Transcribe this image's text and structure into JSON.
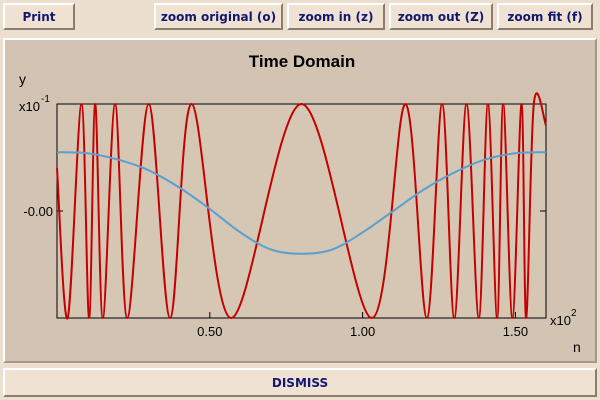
{
  "toolbar": {
    "print_label": "Print",
    "zoom_original_label": "zoom original (o)",
    "zoom_in_label": "zoom in (z)",
    "zoom_out_label": "zoom out (Z)",
    "zoom_fit_label": "zoom fit (f)"
  },
  "footer": {
    "dismiss_label": "DISMISS"
  },
  "plot": {
    "title": "Time Domain",
    "ylabel": "y",
    "xlabel": "n",
    "y_exponent_base": "x10",
    "y_exponent_power": "-1",
    "x_exponent_base": "x10",
    "x_exponent_power": "2",
    "x_ticks": [
      "0.50",
      "1.00",
      "1.50"
    ],
    "y_ticks": [
      "-0.00"
    ]
  },
  "colors": {
    "signal_red": "#c40000",
    "signal_blue": "#5a9fcf",
    "label_navy": "#121870",
    "panel_bg": "#d3c3b3",
    "plot_bg": "#d6c7b5"
  },
  "chart_data": {
    "type": "line",
    "title": "Time Domain",
    "xlabel": "n",
    "ylabel": "y",
    "x_scale_exponent": 2,
    "y_scale_exponent": -1,
    "xlim": [
      0.0,
      1.6
    ],
    "ylim": [
      -1.0,
      1.0
    ],
    "x_ticks": [
      0.5,
      1.0,
      1.5
    ],
    "y_ticks": [
      0.0
    ],
    "series": [
      {
        "color": "#c40000",
        "description_free": true,
        "x": [
          0.0,
          0.035,
          0.08,
          0.105,
          0.125,
          0.15,
          0.19,
          0.23,
          0.3,
          0.37,
          0.44,
          0.57,
          0.8,
          1.03,
          1.14,
          1.21,
          1.26,
          1.3,
          1.34,
          1.38,
          1.41,
          1.44,
          1.46,
          1.49,
          1.52,
          1.535,
          1.56,
          1.6
        ],
        "y": [
          0.4,
          -1.0,
          1.0,
          -1.0,
          1.0,
          -1.0,
          1.0,
          -1.0,
          1.0,
          -1.0,
          1.0,
          -1.0,
          1.0,
          -1.0,
          1.0,
          -1.0,
          1.0,
          -1.0,
          1.0,
          -1.0,
          1.0,
          -1.0,
          1.0,
          -1.0,
          1.0,
          -1.0,
          1.0,
          0.8
        ]
      },
      {
        "color": "#5a9fcf",
        "x": [
          0.0,
          0.1,
          0.2,
          0.3,
          0.4,
          0.5,
          0.6,
          0.7,
          0.8,
          0.9,
          1.0,
          1.1,
          1.2,
          1.3,
          1.4,
          1.5,
          1.6
        ],
        "y": [
          0.55,
          0.54,
          0.48,
          0.38,
          0.22,
          0.02,
          -0.2,
          -0.36,
          -0.4,
          -0.36,
          -0.2,
          0.0,
          0.2,
          0.36,
          0.48,
          0.54,
          0.55
        ]
      }
    ]
  }
}
